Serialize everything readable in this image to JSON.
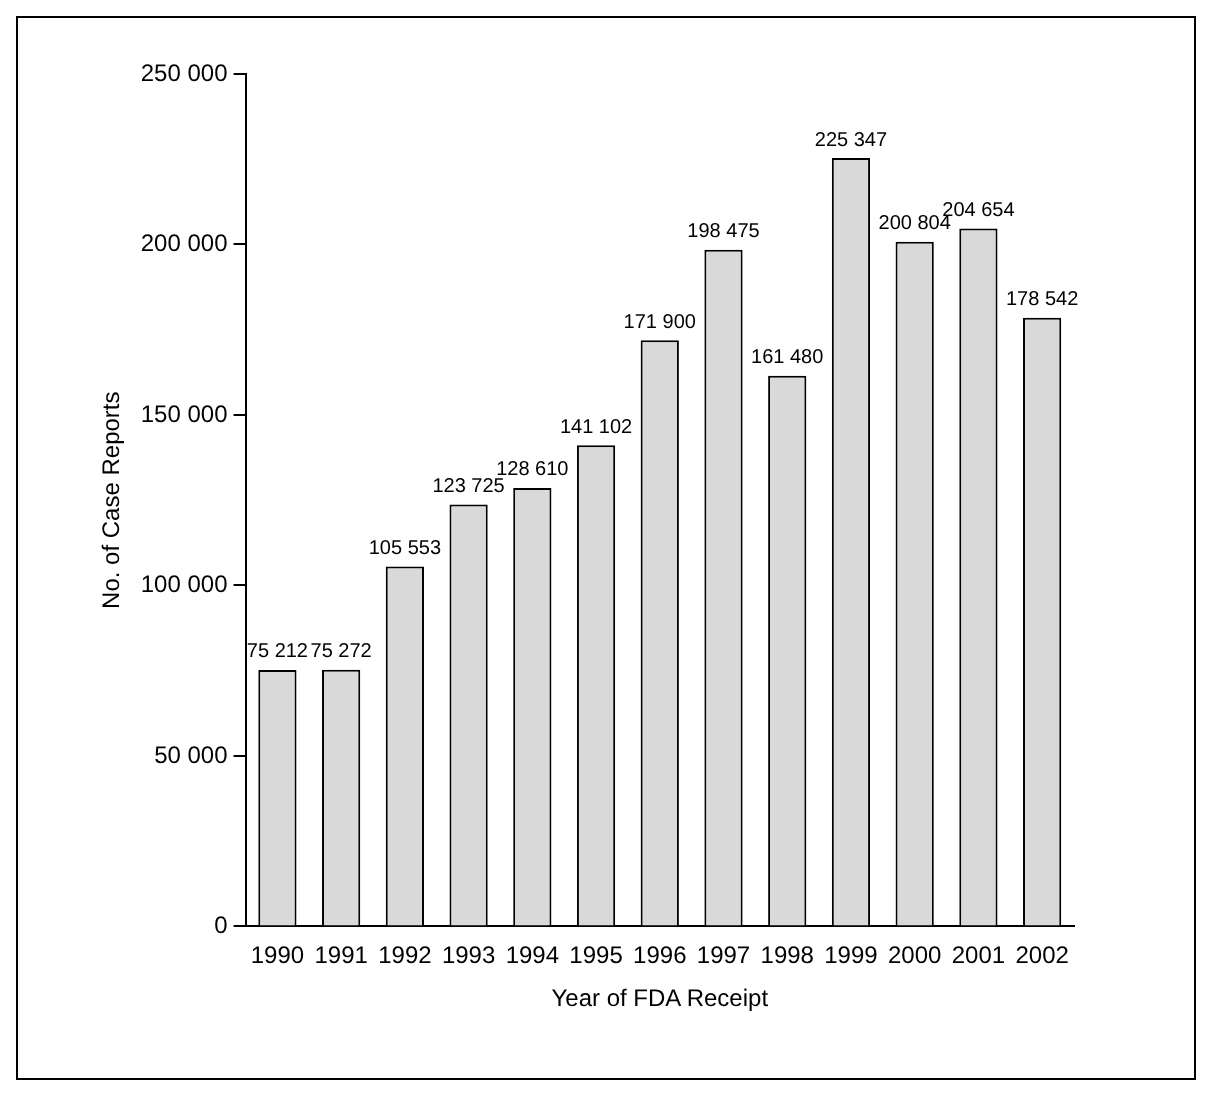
{
  "chart_data": {
    "type": "bar",
    "xlabel": "Year of FDA Receipt",
    "ylabel": "No. of Case Reports",
    "categories": [
      "1990",
      "1991",
      "1992",
      "1993",
      "1994",
      "1995",
      "1996",
      "1997",
      "1998",
      "1999",
      "2000",
      "2001",
      "2002"
    ],
    "values": [
      75212,
      75272,
      105553,
      123725,
      128610,
      141102,
      171900,
      198475,
      161480,
      225347,
      200804,
      204654,
      178542
    ],
    "value_labels": [
      "75 212",
      "75 272",
      "105 553",
      "123 725",
      "128 610",
      "141 102",
      "171 900",
      "198 475",
      "161 480",
      "225 347",
      "200 804",
      "204 654",
      "178 542"
    ],
    "color": "#d9d9d9",
    "ylim": [
      0,
      250000
    ],
    "yticks": [
      0,
      {
        "value": 50000,
        "label": "50 000"
      },
      {
        "value": 100000,
        "label": "100 000"
      },
      {
        "value": 150000,
        "label": "150 000"
      },
      {
        "value": 200000,
        "label": "200 000"
      },
      {
        "value": 250000,
        "label": "250 000"
      }
    ],
    "grid": false,
    "legend": false
  }
}
